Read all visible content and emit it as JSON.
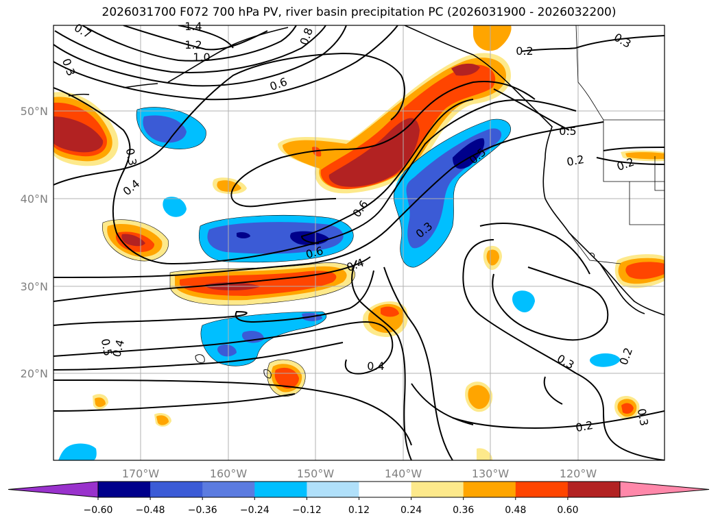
{
  "title": "2026031700 F072 700 hPa PV, river basin precipitation PC (2026031900 - 2026032200)",
  "map": {
    "lat_labels": [
      "50°N",
      "40°N",
      "30°N",
      "20°N"
    ],
    "lon_labels": [
      "170°W",
      "160°W",
      "150°W",
      "140°W",
      "130°W",
      "120°W"
    ],
    "contour_labels": [
      "1.4",
      "1.2",
      "1.0",
      "0.7",
      "0.8",
      "0.3",
      "0.6",
      "0.2",
      "0.3",
      "0.5",
      "0.2",
      "0.2",
      "0.3",
      "0.4",
      "0.5",
      "0.6",
      "0.6",
      "0.3",
      "0.4",
      "0.5",
      "0.4",
      "0.4",
      "0.3",
      "0.2",
      "0.2",
      "0.3"
    ],
    "shading_colors": {
      "pos_weak": "#fde98b",
      "pos_mid": "#ffa500",
      "pos_strong": "#ff4500",
      "pos_vstrong": "#b22222",
      "neg_weak": "#00bfff",
      "neg_mid": "#3b5bd6",
      "neg_strong": "#00008b"
    }
  },
  "colorbar": {
    "tick_labels": [
      "−0.60",
      "−0.48",
      "−0.36",
      "−0.24",
      "−0.12",
      "0.12",
      "0.24",
      "0.36",
      "0.48",
      "0.60"
    ],
    "colors": [
      "#9932cc",
      "#00008b",
      "#3b5bd6",
      "#5b7be0",
      "#00bfff",
      "#b0e0fa",
      "#ffffff",
      "#fde98b",
      "#ffa500",
      "#ff4500",
      "#b22222",
      "#ff88aa"
    ]
  }
}
